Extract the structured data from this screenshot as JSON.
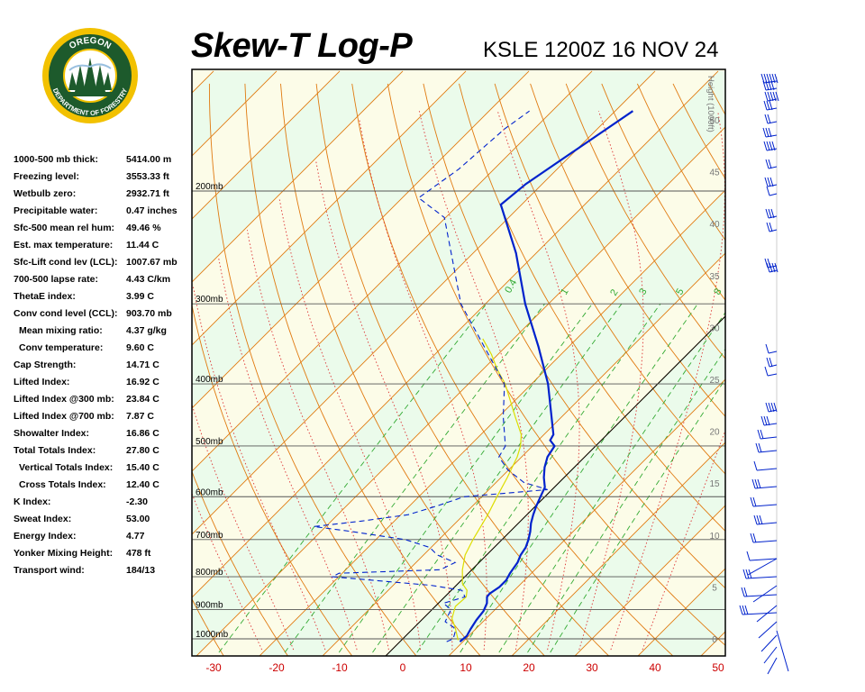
{
  "header": {
    "title": "Skew-T Log-P",
    "station": "KSLE 1200Z 16 NOV 24"
  },
  "logo": {
    "top_text": "OREGON",
    "bottom_text": "DEPARTMENT OF FORESTRY"
  },
  "indices": [
    {
      "label": "1000-500 mb thick:",
      "value": "5414.00 m"
    },
    {
      "label": "Freezing level:",
      "value": "3553.33 ft"
    },
    {
      "label": "Wetbulb zero:",
      "value": "2932.71 ft"
    },
    {
      "label": "Precipitable water:",
      "value": "0.47 inches"
    },
    {
      "label": "Sfc-500 mean rel hum:",
      "value": "49.46 %"
    },
    {
      "label": "Est. max temperature:",
      "value": "11.44 C"
    },
    {
      "label": "Sfc-Lift cond lev (LCL):",
      "value": "1007.67 mb"
    },
    {
      "label": "700-500 lapse rate:",
      "value": "4.43 C/km"
    },
    {
      "label": "ThetaE index:",
      "value": "3.99 C"
    },
    {
      "label": "Conv cond level (CCL):",
      "value": "903.70 mb"
    },
    {
      "label": "Mean mixing ratio:",
      "value": "4.37 g/kg",
      "indent": true
    },
    {
      "label": "Conv temperature:",
      "value": "9.60 C",
      "indent": true
    },
    {
      "label": "Cap Strength:",
      "value": "14.71 C"
    },
    {
      "label": "Lifted Index:",
      "value": "16.92 C"
    },
    {
      "label": "Lifted Index @300 mb:",
      "value": "23.84 C"
    },
    {
      "label": "Lifted Index @700 mb:",
      "value": "7.87 C"
    },
    {
      "label": "Showalter Index:",
      "value": "16.86 C"
    },
    {
      "label": "Total Totals Index:",
      "value": "27.80 C"
    },
    {
      "label": "Vertical Totals Index:",
      "value": "15.40 C",
      "indent": true
    },
    {
      "label": "Cross Totals Index:",
      "value": "12.40 C",
      "indent": true
    },
    {
      "label": "K Index:",
      "value": "-2.30"
    },
    {
      "label": "Sweat Index:",
      "value": "53.00"
    },
    {
      "label": "Energy Index:",
      "value": "4.77"
    },
    {
      "label": "Yonker Mixing Height:",
      "value": "478 ft"
    },
    {
      "label": "Transport wind:",
      "value": "184/13"
    }
  ],
  "colors": {
    "temperature": "#0022cc",
    "dewpoint": "#0022cc",
    "parcel": "#dddd00",
    "dry_adiabat": "#e07a10",
    "moist_adiabat": "#dd3333",
    "mixing_ratio": "#33aa33",
    "isotherm": "#e07a10",
    "isobar": "#555555",
    "band_a": "#fcfce8",
    "band_b": "#ebfbeb",
    "wind_barb": "#0022cc"
  },
  "chart_data": {
    "type": "skew-t",
    "pressure_levels": [
      1000,
      900,
      800,
      700,
      600,
      500,
      400,
      300,
      200
    ],
    "pressure_labels": [
      "1000mb",
      "900mb",
      "800mb",
      "700mb",
      "600mb",
      "500mb",
      "400mb",
      "300mb",
      "200mb"
    ],
    "x_ticks": [
      -30,
      -20,
      -10,
      0,
      10,
      20,
      30,
      40,
      50
    ],
    "x_tick_labels": [
      "-30",
      "-20",
      "-10",
      "0",
      "10",
      "20",
      "30",
      "40",
      "50"
    ],
    "xlim": [
      -34,
      51
    ],
    "height_axis_label": "Height (1000ft)",
    "height_ticks": [
      0,
      5,
      10,
      15,
      20,
      25,
      30,
      35,
      40,
      45,
      50
    ],
    "height_tick_labels": [
      "0",
      "5",
      "10",
      "15",
      "20",
      "25",
      "30",
      "35",
      "40",
      "45",
      "50"
    ],
    "mixing_ratio_labels": [
      "0.4",
      "1",
      "2",
      "3",
      "5",
      "8"
    ],
    "temperature": [
      {
        "p": 1010,
        "t": 9.5
      },
      {
        "p": 990,
        "t": 9.7
      },
      {
        "p": 965,
        "t": 9.2
      },
      {
        "p": 935,
        "t": 8.7
      },
      {
        "p": 905,
        "t": 8.4
      },
      {
        "p": 880,
        "t": 7.7
      },
      {
        "p": 860,
        "t": 6.7
      },
      {
        "p": 850,
        "t": 6.6
      },
      {
        "p": 830,
        "t": 7.1
      },
      {
        "p": 810,
        "t": 7.1
      },
      {
        "p": 790,
        "t": 6.6
      },
      {
        "p": 760,
        "t": 6.1
      },
      {
        "p": 740,
        "t": 5.4
      },
      {
        "p": 720,
        "t": 5.0
      },
      {
        "p": 700,
        "t": 4.2
      },
      {
        "p": 680,
        "t": 3.2
      },
      {
        "p": 660,
        "t": 2.0
      },
      {
        "p": 640,
        "t": 1.0
      },
      {
        "p": 620,
        "t": 0.1
      },
      {
        "p": 600,
        "t": -0.7
      },
      {
        "p": 580,
        "t": -1.5
      },
      {
        "p": 560,
        "t": -3.2
      },
      {
        "p": 540,
        "t": -4.7
      },
      {
        "p": 520,
        "t": -5.9
      },
      {
        "p": 500,
        "t": -6.5
      },
      {
        "p": 490,
        "t": -8.1
      },
      {
        "p": 480,
        "t": -8.5
      },
      {
        "p": 400,
        "t": -17.4
      },
      {
        "p": 350,
        "t": -24.8
      },
      {
        "p": 300,
        "t": -33.7
      },
      {
        "p": 250,
        "t": -43.2
      },
      {
        "p": 210,
        "t": -53.3
      },
      {
        "p": 195,
        "t": -52.6
      },
      {
        "p": 150,
        "t": -47.2
      }
    ],
    "dewpoint": [
      {
        "p": 1010,
        "t": 7.4
      },
      {
        "p": 1000,
        "t": 8.0
      },
      {
        "p": 975,
        "t": 7.2
      },
      {
        "p": 960,
        "t": 6.3
      },
      {
        "p": 940,
        "t": 4.0
      },
      {
        "p": 900,
        "t": 3.0
      },
      {
        "p": 880,
        "t": 0.8
      },
      {
        "p": 870,
        "t": 2.0
      },
      {
        "p": 860,
        "t": 3.2
      },
      {
        "p": 840,
        "t": 1.7
      },
      {
        "p": 825,
        "t": -4.0
      },
      {
        "p": 800,
        "t": -21.0
      },
      {
        "p": 790,
        "t": -20.5
      },
      {
        "p": 780,
        "t": -5.0
      },
      {
        "p": 760,
        "t": -3.8
      },
      {
        "p": 740,
        "t": -7.8
      },
      {
        "p": 720,
        "t": -10.2
      },
      {
        "p": 700,
        "t": -15.3
      },
      {
        "p": 680,
        "t": -25.1
      },
      {
        "p": 668,
        "t": -31.9
      },
      {
        "p": 655,
        "t": -25.2
      },
      {
        "p": 640,
        "t": -18.8
      },
      {
        "p": 620,
        "t": -15.6
      },
      {
        "p": 600,
        "t": -12.8
      },
      {
        "p": 585,
        "t": -0.7
      },
      {
        "p": 570,
        "t": -5.6
      },
      {
        "p": 545,
        "t": -10.1
      },
      {
        "p": 520,
        "t": -13.6
      },
      {
        "p": 500,
        "t": -14.3
      },
      {
        "p": 450,
        "t": -19.3
      },
      {
        "p": 400,
        "t": -24.3
      },
      {
        "p": 300,
        "t": -43.9
      },
      {
        "p": 220,
        "t": -60.2
      },
      {
        "p": 205,
        "t": -67.4
      },
      {
        "p": 185,
        "t": -65.6
      },
      {
        "p": 160,
        "t": -64.7
      },
      {
        "p": 150,
        "t": -63.6
      }
    ],
    "parcel": [
      {
        "p": 1005,
        "t": 9.0
      },
      {
        "p": 960,
        "t": 6.5
      },
      {
        "p": 930,
        "t": 4.6
      },
      {
        "p": 910,
        "t": 3.9
      },
      {
        "p": 890,
        "t": 3.2
      },
      {
        "p": 860,
        "t": 3.4
      },
      {
        "p": 840,
        "t": 2.5
      },
      {
        "p": 820,
        "t": 0.7
      },
      {
        "p": 780,
        "t": -1.5
      },
      {
        "p": 740,
        "t": -3.4
      },
      {
        "p": 700,
        "t": -4.6
      },
      {
        "p": 640,
        "t": -6.2
      },
      {
        "p": 600,
        "t": -7.6
      },
      {
        "p": 560,
        "t": -9.0
      },
      {
        "p": 520,
        "t": -10.7
      },
      {
        "p": 500,
        "t": -11.9
      },
      {
        "p": 480,
        "t": -13.6
      },
      {
        "p": 450,
        "t": -17.4
      },
      {
        "p": 400,
        "t": -24.2
      },
      {
        "p": 380,
        "t": -27.7
      },
      {
        "p": 360,
        "t": -31.0
      },
      {
        "p": 340,
        "t": -34.9
      }
    ],
    "grid": true
  }
}
